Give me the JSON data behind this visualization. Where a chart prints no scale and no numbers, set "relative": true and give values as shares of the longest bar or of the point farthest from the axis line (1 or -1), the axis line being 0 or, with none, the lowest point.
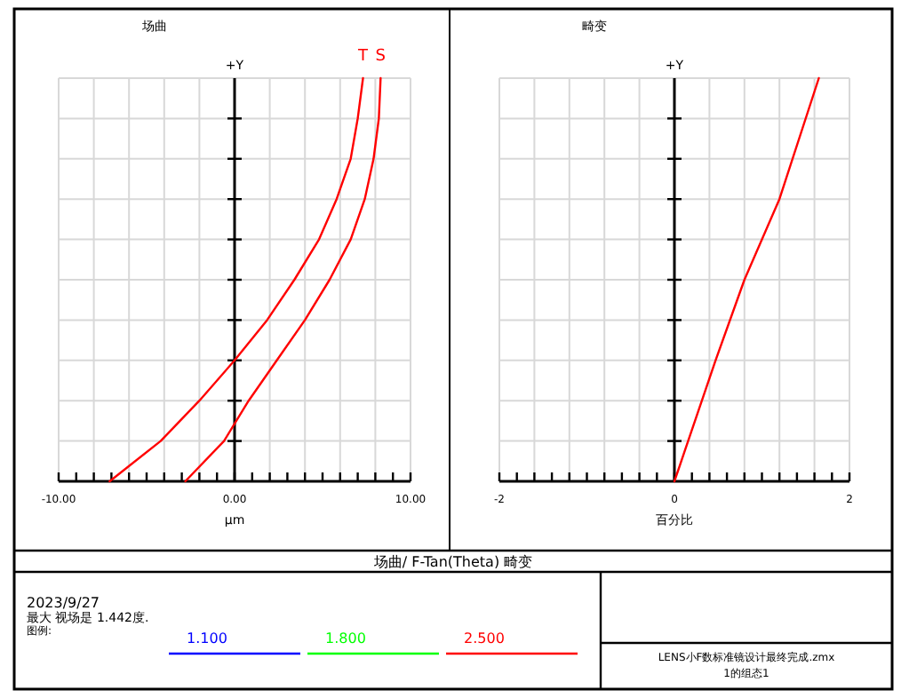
{
  "chart_data": [
    {
      "type": "line",
      "title": "场曲",
      "xlabel": "μm",
      "ylabel": "+Y",
      "relative": true,
      "grid": true,
      "xlim": [
        -10,
        10
      ],
      "xticks": [
        {
          "value": -10,
          "label": "-10.00"
        },
        {
          "value": -9,
          "label": null
        },
        {
          "value": -8,
          "label": null
        },
        {
          "value": -7,
          "label": null
        },
        {
          "value": -6,
          "label": null
        },
        {
          "value": -5,
          "label": null
        },
        {
          "value": -4,
          "label": null
        },
        {
          "value": -3,
          "label": null
        },
        {
          "value": -2,
          "label": null
        },
        {
          "value": -1,
          "label": null
        },
        {
          "value": 0,
          "label": "0.00"
        },
        {
          "value": 1,
          "label": null
        },
        {
          "value": 2,
          "label": null
        },
        {
          "value": 3,
          "label": null
        },
        {
          "value": 4,
          "label": null
        },
        {
          "value": 5,
          "label": null
        },
        {
          "value": 6,
          "label": null
        },
        {
          "value": 7,
          "label": null
        },
        {
          "value": 8,
          "label": null
        },
        {
          "value": 9,
          "label": null
        },
        {
          "value": 10,
          "label": "10.00"
        }
      ],
      "series": [
        {
          "name": "T",
          "color": "#ff0000",
          "x": [
            -7.1,
            -4.2,
            -2.0,
            0.0,
            1.85,
            3.4,
            4.8,
            5.8,
            6.6,
            7.0,
            7.3
          ],
          "values": [
            0,
            0.1,
            0.2,
            0.3,
            0.4,
            0.5,
            0.6,
            0.7,
            0.8,
            0.9,
            1.0
          ]
        },
        {
          "name": "S",
          "color": "#ff0000",
          "x": [
            -2.8,
            -0.6,
            0.8,
            2.4,
            4.0,
            5.4,
            6.6,
            7.4,
            7.9,
            8.2,
            8.3
          ],
          "values": [
            0,
            0.1,
            0.2,
            0.3,
            0.4,
            0.5,
            0.6,
            0.7,
            0.8,
            0.9,
            1.0
          ]
        }
      ]
    },
    {
      "type": "line",
      "title": "畸变",
      "xlabel": "百分比",
      "ylabel": "+Y",
      "relative": true,
      "grid": true,
      "xlim": [
        -2,
        2
      ],
      "xticks": [
        -2,
        {
          "value": -1.8,
          "label": null
        },
        {
          "value": -1.6,
          "label": null
        },
        {
          "value": -1.4,
          "label": null
        },
        {
          "value": -1.2,
          "label": null
        },
        {
          "value": -1,
          "label": null
        },
        {
          "value": -0.8,
          "label": null
        },
        {
          "value": -0.6,
          "label": null
        },
        {
          "value": -0.4,
          "label": null
        },
        {
          "value": -0.2,
          "label": null
        },
        0,
        {
          "value": 0.2,
          "label": null
        },
        {
          "value": 0.4,
          "label": null
        },
        {
          "value": 0.6,
          "label": null
        },
        {
          "value": 0.8,
          "label": null
        },
        {
          "value": 1,
          "label": null
        },
        {
          "value": 1.2,
          "label": null
        },
        {
          "value": 1.4,
          "label": null
        },
        {
          "value": 1.6,
          "label": null
        },
        {
          "value": 1.8,
          "label": null
        },
        2
      ],
      "series": [
        {
          "color": "#ff0000",
          "x": [
            0,
            0.47,
            0.8,
            1.2,
            1.65
          ],
          "values": [
            0,
            0.3,
            0.5,
            0.7,
            1.0
          ]
        }
      ]
    },
    {
      "type": "other",
      "title": "场曲/ F-Tan(Theta) 畸变",
      "annotations": [
        "2023/9/27",
        "最大 视场是 1.442度.",
        "图例:",
        "LENS小F数标准镜设计最终完成.zmx",
        "1的组态1"
      ],
      "categories": [
        "1.100",
        "1.800",
        "2.500"
      ],
      "colors": [
        "#0000ff",
        "#00ff00",
        "#ff0000"
      ]
    }
  ]
}
